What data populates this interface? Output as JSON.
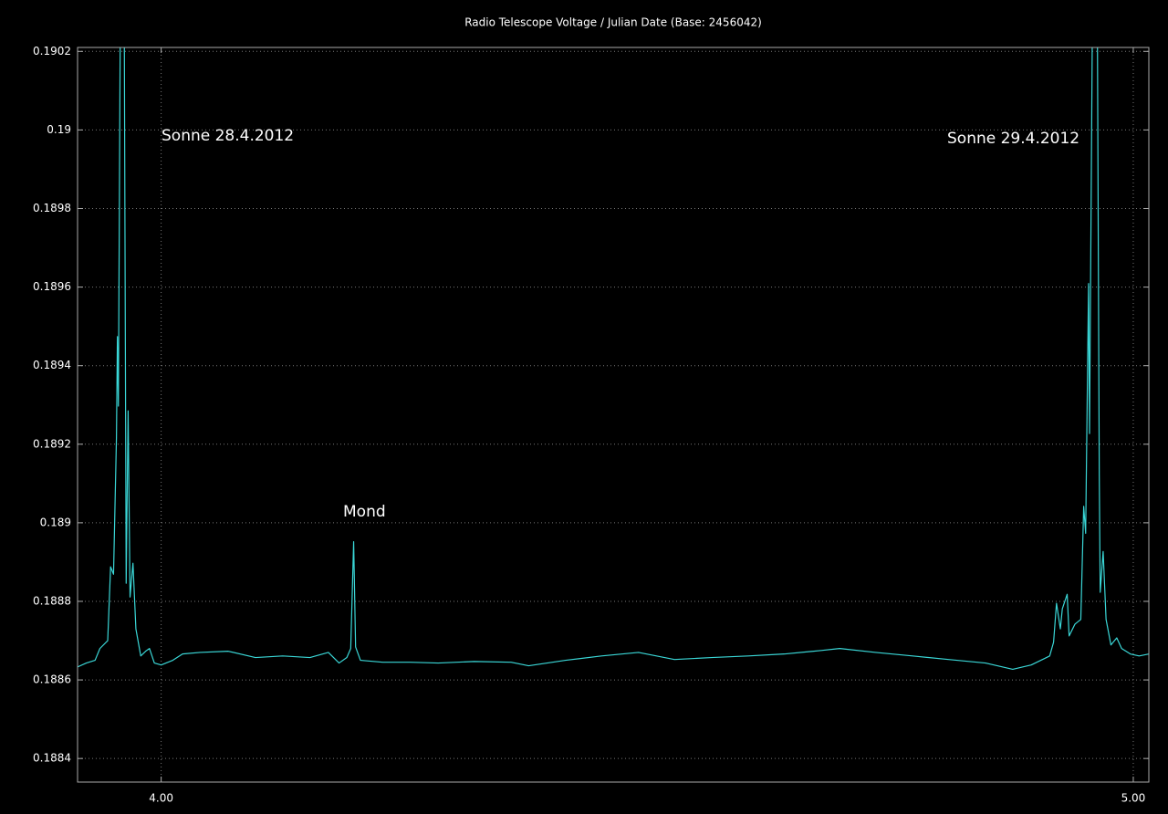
{
  "chart_data": {
    "type": "line",
    "title": "Radio Telescope Voltage / Julian Date (Base: 2456042)",
    "annotations": [
      "Sonne 28.4.2012",
      "Mond",
      "Sonne 29.4.2012"
    ],
    "x": [
      3.914,
      3.923,
      3.932,
      3.937,
      3.945,
      3.948,
      3.951,
      3.954,
      3.955,
      3.956,
      3.958,
      3.962,
      3.964,
      3.966,
      3.968,
      3.971,
      3.974,
      3.979,
      3.984,
      3.988,
      3.993,
      4.0,
      4.012,
      4.022,
      4.04,
      4.069,
      4.097,
      4.125,
      4.153,
      4.172,
      4.183,
      4.191,
      4.195,
      4.198,
      4.2,
      4.205,
      4.228,
      4.256,
      4.285,
      4.322,
      4.36,
      4.378,
      4.416,
      4.453,
      4.491,
      4.528,
      4.566,
      4.604,
      4.641,
      4.679,
      4.698,
      4.735,
      4.773,
      4.81,
      4.848,
      4.876,
      4.895,
      4.914,
      4.918,
      4.921,
      4.925,
      4.927,
      4.932,
      4.934,
      4.94,
      4.946,
      4.949,
      4.951,
      4.954,
      4.955,
      4.958,
      4.963,
      4.965,
      4.966,
      4.969,
      4.972,
      4.977,
      4.983,
      4.988,
      4.997,
      5.006,
      5.016
    ],
    "series": [
      {
        "color": "#3ad6d6",
        "values": [
          0.188633,
          0.188643,
          0.18865,
          0.18868,
          0.1887,
          0.188888,
          0.188869,
          0.189216,
          0.189474,
          0.189297,
          0.1903,
          0.1903,
          0.188846,
          0.189285,
          0.188811,
          0.188897,
          0.18873,
          0.188661,
          0.188673,
          0.18868,
          0.188643,
          0.188638,
          0.18865,
          0.188666,
          0.18867,
          0.188673,
          0.188657,
          0.188661,
          0.188657,
          0.18867,
          0.188643,
          0.188657,
          0.18868,
          0.188952,
          0.188684,
          0.18865,
          0.188645,
          0.188645,
          0.188643,
          0.188647,
          0.188645,
          0.188636,
          0.18865,
          0.188661,
          0.18867,
          0.188652,
          0.188657,
          0.188661,
          0.188666,
          0.188675,
          0.18868,
          0.18867,
          0.188661,
          0.188652,
          0.188643,
          0.188627,
          0.188638,
          0.188661,
          0.188696,
          0.188795,
          0.18873,
          0.188781,
          0.188818,
          0.188712,
          0.188742,
          0.188754,
          0.189042,
          0.188973,
          0.189609,
          0.189227,
          0.1903,
          0.1903,
          0.189123,
          0.188823,
          0.188927,
          0.188754,
          0.188689,
          0.188707,
          0.18868,
          0.188666,
          0.188661,
          0.188666
        ]
      }
    ],
    "xlim": [
      3.914,
      5.016
    ],
    "xticks": [
      {
        "value": 4,
        "label": "4.00"
      },
      {
        "value": 5,
        "label": "5.00"
      }
    ],
    "ylim": [
      0.18834,
      0.19021
    ],
    "yticks": [
      0.1884,
      0.1886,
      0.1888,
      0.189,
      0.1892,
      0.1894,
      0.1896,
      0.1898,
      0.19,
      0.1902
    ],
    "grid": true
  }
}
